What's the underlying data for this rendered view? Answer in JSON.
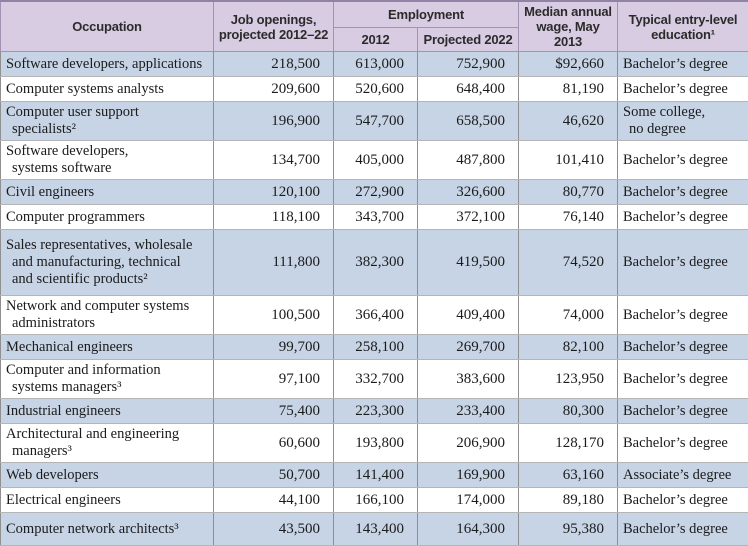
{
  "colors": {
    "header_bg": "#d8cce3",
    "header_border": "#a292b4",
    "row_alt_bg": "#c6d4e6",
    "row_bg": "#ffffff",
    "body_border": "#8f8f8f",
    "text": "#1b1b1b"
  },
  "chart_data": {
    "type": "table",
    "header": {
      "occupation": "Occupation",
      "openings": [
        "Job openings,",
        "projected 2012–22"
      ],
      "employment": "Employment",
      "emp_2012": "2012",
      "emp_2022": "Projected 2022",
      "wage": [
        "Median annual",
        "wage, May 2013"
      ],
      "education": [
        "Typical entry-level",
        "education¹"
      ]
    },
    "rows": [
      {
        "occupation": [
          "Software developers, applications"
        ],
        "openings": "218,500",
        "emp_2012": "613,000",
        "emp_2022": "752,900",
        "wage": "$92,660",
        "education": [
          "Bachelor’s degree"
        ]
      },
      {
        "occupation": [
          "Computer systems analysts"
        ],
        "openings": "209,600",
        "emp_2012": "520,600",
        "emp_2022": "648,400",
        "wage": "81,190",
        "education": [
          "Bachelor’s degree"
        ]
      },
      {
        "occupation": [
          "Computer user support",
          "specialists²"
        ],
        "openings": "196,900",
        "emp_2012": "547,700",
        "emp_2022": "658,500",
        "wage": "46,620",
        "education": [
          "Some college,",
          "no degree"
        ]
      },
      {
        "occupation": [
          "Software developers,",
          "systems software"
        ],
        "openings": "134,700",
        "emp_2012": "405,000",
        "emp_2022": "487,800",
        "wage": "101,410",
        "education": [
          "Bachelor’s degree"
        ]
      },
      {
        "occupation": [
          "Civil engineers"
        ],
        "openings": "120,100",
        "emp_2012": "272,900",
        "emp_2022": "326,600",
        "wage": "80,770",
        "education": [
          "Bachelor’s degree"
        ]
      },
      {
        "occupation": [
          "Computer programmers"
        ],
        "openings": "118,100",
        "emp_2012": "343,700",
        "emp_2022": "372,100",
        "wage": "76,140",
        "education": [
          "Bachelor’s degree"
        ]
      },
      {
        "occupation": [
          "Sales representatives, wholesale",
          "and manufacturing, technical",
          "and scientific products²"
        ],
        "openings": "111,800",
        "emp_2012": "382,300",
        "emp_2022": "419,500",
        "wage": "74,520",
        "education": [
          "Bachelor’s degree"
        ]
      },
      {
        "occupation": [
          "Network and computer systems",
          "administrators"
        ],
        "openings": "100,500",
        "emp_2012": "366,400",
        "emp_2022": "409,400",
        "wage": "74,000",
        "education": [
          "Bachelor’s degree"
        ]
      },
      {
        "occupation": [
          "Mechanical engineers"
        ],
        "openings": "99,700",
        "emp_2012": "258,100",
        "emp_2022": "269,700",
        "wage": "82,100",
        "education": [
          "Bachelor’s degree"
        ]
      },
      {
        "occupation": [
          "Computer and information",
          "systems managers³"
        ],
        "openings": "97,100",
        "emp_2012": "332,700",
        "emp_2022": "383,600",
        "wage": "123,950",
        "education": [
          "Bachelor’s degree"
        ]
      },
      {
        "occupation": [
          "Industrial engineers"
        ],
        "openings": "75,400",
        "emp_2012": "223,300",
        "emp_2022": "233,400",
        "wage": "80,300",
        "education": [
          "Bachelor’s degree"
        ]
      },
      {
        "occupation": [
          "Architectural and engineering",
          "managers³"
        ],
        "openings": "60,600",
        "emp_2012": "193,800",
        "emp_2022": "206,900",
        "wage": "128,170",
        "education": [
          "Bachelor’s degree"
        ]
      },
      {
        "occupation": [
          "Web developers"
        ],
        "openings": "50,700",
        "emp_2012": "141,400",
        "emp_2022": "169,900",
        "wage": "63,160",
        "education": [
          "Associate’s degree"
        ]
      },
      {
        "occupation": [
          "Electrical engineers"
        ],
        "openings": "44,100",
        "emp_2012": "166,100",
        "emp_2022": "174,000",
        "wage": "89,180",
        "education": [
          "Bachelor’s degree"
        ]
      },
      {
        "occupation": [
          "Computer network architects³"
        ],
        "openings": "43,500",
        "emp_2012": "143,400",
        "emp_2022": "164,300",
        "wage": "95,380",
        "education": [
          "Bachelor’s degree"
        ]
      }
    ]
  }
}
